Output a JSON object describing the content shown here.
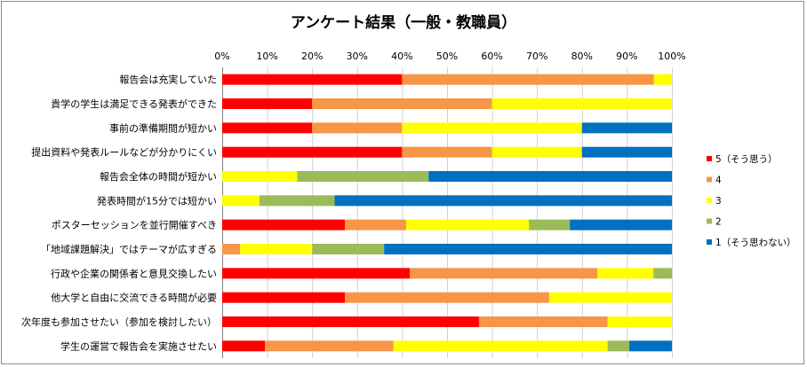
{
  "chart_data": {
    "type": "bar",
    "orientation": "horizontal",
    "stacked": "percent",
    "title": "アンケート結果（一般・教職員）",
    "xlabel": "",
    "ylabel": "",
    "xlim": [
      0,
      100
    ],
    "x_ticks": [
      "0%",
      "10%",
      "20%",
      "30%",
      "40%",
      "50%",
      "60%",
      "70%",
      "80%",
      "90%",
      "100%"
    ],
    "grid": true,
    "legend_position": "right",
    "categories": [
      "報告会は充実していた",
      "貴学の学生は満足できる発表ができた",
      "事前の準備期間が短かい",
      "提出資料や発表ルールなどが分かりにくい",
      "報告会全体の時間が短かい",
      "発表時間が15分では短かい",
      "ポスターセッションを並行開催すべき",
      "「地域課題解決」ではテーマが広すぎる",
      "行政や企業の関係者と意見交換したい",
      "他大学と自由に交流できる時間が必要",
      "次年度も参加させたい（参加を検討したい）",
      "学生の運営で報告会を実施させたい"
    ],
    "series": [
      {
        "name": "5（そう思う）",
        "color": "#ff0000",
        "values": [
          40,
          20,
          20,
          40,
          0,
          0,
          27.3,
          0,
          41.7,
          27.3,
          57.1,
          9.5
        ]
      },
      {
        "name": "4",
        "color": "#f79646",
        "values": [
          56,
          40,
          20,
          20,
          0,
          0,
          13.6,
          4,
          41.7,
          45.4,
          28.6,
          28.6
        ]
      },
      {
        "name": "3",
        "color": "#ffff00",
        "values": [
          4,
          40,
          40,
          20,
          16.7,
          8.3,
          27.3,
          16,
          12.5,
          27.3,
          14.3,
          47.6
        ]
      },
      {
        "name": "2",
        "color": "#9bbb59",
        "values": [
          0,
          0,
          0,
          0,
          29.2,
          16.7,
          9.1,
          16,
          4.1,
          0,
          0,
          4.8
        ]
      },
      {
        "name": "1（そう思わない）",
        "color": "#0070c0",
        "values": [
          0,
          0,
          20,
          20,
          54.1,
          75,
          22.7,
          64,
          0,
          0,
          0,
          9.5
        ]
      }
    ]
  }
}
